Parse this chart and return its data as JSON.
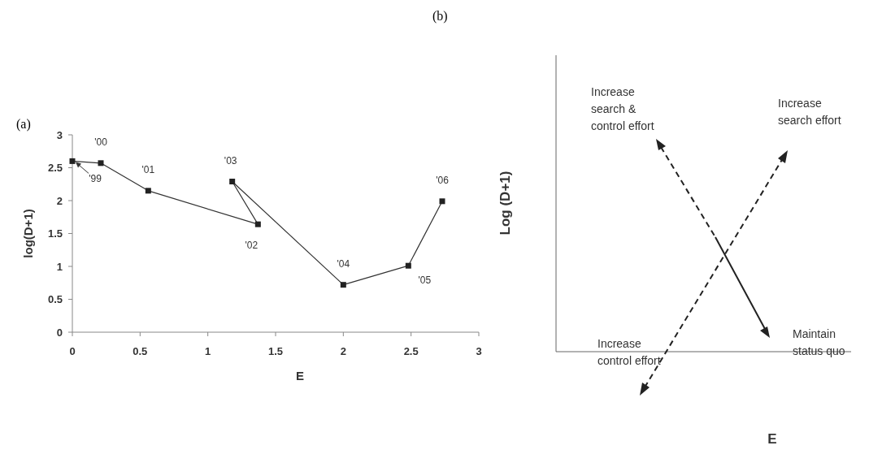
{
  "chart_data": [
    {
      "type": "line",
      "title": "(a)",
      "xlabel": "E",
      "ylabel": "log(D+1)",
      "x": [
        0,
        0.21,
        0.56,
        1.37,
        1.18,
        2.0,
        2.48,
        2.73
      ],
      "series": [
        {
          "color": "#333333",
          "values": [
            2.6,
            2.57,
            2.15,
            1.64,
            2.29,
            0.72,
            1.01,
            1.99
          ]
        }
      ],
      "xlim": [
        0,
        3
      ],
      "xticks": [
        0,
        0.5,
        1,
        1.5,
        2,
        2.5,
        3
      ],
      "ylim": [
        0,
        3
      ],
      "yticks": [
        0,
        0.5,
        1,
        1.5,
        2,
        2.5,
        3
      ],
      "marker": "square",
      "annotations": [
        {
          "text": "'99",
          "x": 0,
          "y": 2.6
        },
        {
          "text": "'00",
          "x": 0.21,
          "y": 2.57
        },
        {
          "text": "'01",
          "x": 0.56,
          "y": 2.15
        },
        {
          "text": "'02",
          "x": 1.37,
          "y": 1.64
        },
        {
          "text": "'03",
          "x": 1.18,
          "y": 2.29
        },
        {
          "text": "'04",
          "x": 2.0,
          "y": 0.72
        },
        {
          "text": "'05",
          "x": 2.48,
          "y": 1.01
        },
        {
          "text": "'06",
          "x": 2.73,
          "y": 1.99
        }
      ]
    },
    {
      "type": "other",
      "title": "(b)",
      "xlabel": "E",
      "ylabel": "Log (D+1)",
      "annotations": [
        "Increase search & control effort",
        "Increase search effort",
        "Increase control effort",
        "Maintain status quo"
      ]
    }
  ]
}
